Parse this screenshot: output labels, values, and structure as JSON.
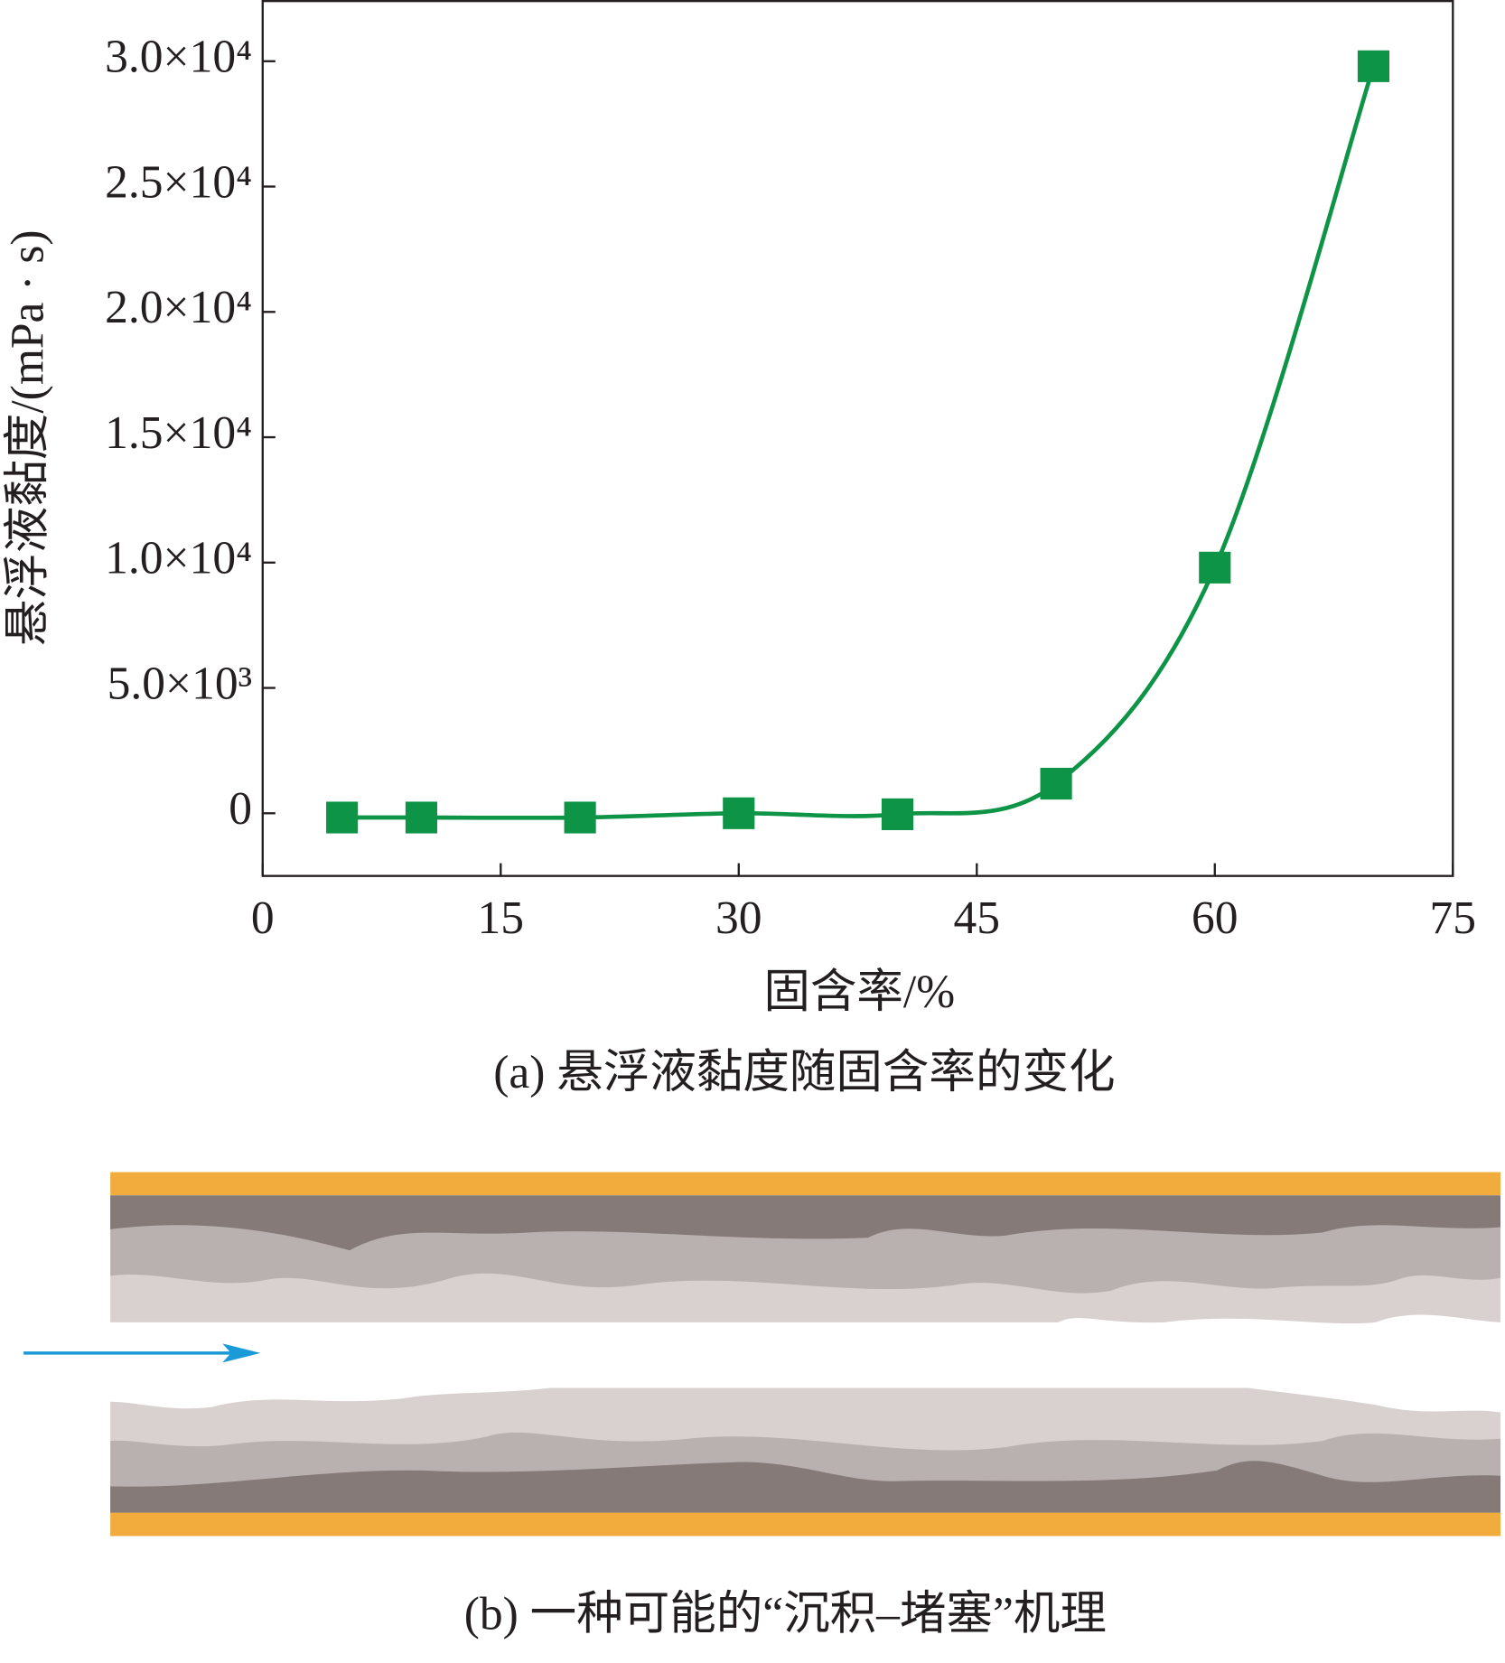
{
  "chart_data": {
    "type": "line",
    "y_label": "悬浮液黏度/(mPa · s)",
    "x_label": "固含率/%",
    "caption": "(a) 悬浮液黏度随固含率的变化",
    "x": [
      5,
      10,
      20,
      30,
      40,
      50,
      60,
      70
    ],
    "values": [
      -170,
      -170,
      -170,
      0,
      -40,
      1180,
      9800,
      29800
    ],
    "color": "#0e9447",
    "marker": "square",
    "xlim": [
      0,
      75
    ],
    "xticks": [
      0,
      15,
      30,
      45,
      60,
      75
    ],
    "ylim": [
      -2500,
      32400
    ],
    "yticks": [
      0,
      {
        "value": 5000,
        "label": "5.0×10³"
      },
      {
        "value": 10000,
        "label": "1.0×10⁴"
      },
      {
        "value": 15000,
        "label": "1.5×10⁴"
      },
      {
        "value": 20000,
        "label": "2.0×10⁴"
      },
      {
        "value": 25000,
        "label": "2.5×10⁴"
      },
      {
        "value": 30000,
        "label": "3.0×10⁴"
      }
    ]
  },
  "diagram": {
    "caption": "(b) 一种可能的“沉积–堵塞”机理"
  }
}
